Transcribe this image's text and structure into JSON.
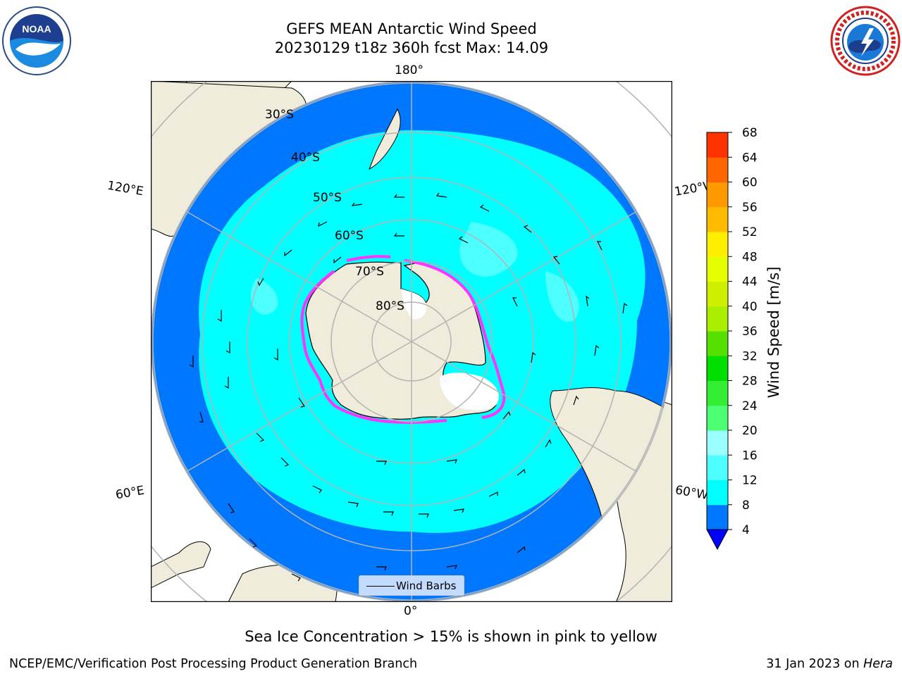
{
  "title": {
    "line1": "GEFS MEAN Antarctic Wind Speed",
    "line2": "20230129 t18z 360h fcst   Max: 14.09"
  },
  "logos": {
    "left": "noaa-logo",
    "right": "national-weather-service-logo"
  },
  "map": {
    "projection": "south-polar-stereographic",
    "lon_labels": {
      "top": "180°",
      "bottom": "0°",
      "upper_left": "120°E",
      "upper_right": "120°W",
      "lower_left": "60°E",
      "lower_right": "60°W"
    },
    "lat_labels": [
      "30°S",
      "40°S",
      "50°S",
      "60°S",
      "70°S",
      "80°S"
    ],
    "legend_label": "Wind Barbs",
    "colors": {
      "ocean_dark": "#0077ff",
      "ocean_light": "#00ffff",
      "land": "#efecdc",
      "ice": "#ffffff",
      "ice_edge": "#ff33ff",
      "grid": "#b3b3b3"
    }
  },
  "colorbar": {
    "label": "Wind Speed [m/s]",
    "ticks": [
      "4",
      "8",
      "12",
      "16",
      "20",
      "24",
      "28",
      "32",
      "36",
      "40",
      "44",
      "48",
      "52",
      "56",
      "60",
      "64",
      "68"
    ],
    "colors": [
      "#0077ff",
      "#00ffff",
      "#4dffff",
      "#99ffff",
      "#4dff73",
      "#33ee33",
      "#00e000",
      "#55e000",
      "#aaee00",
      "#cef000",
      "#e6ff00",
      "#ffee00",
      "#ffbb00",
      "#ff9900",
      "#ff6600",
      "#ff3300",
      "#ff0000"
    ],
    "under_color": "#0000ff"
  },
  "caption": "Sea Ice Concentration > 15% is shown in pink to yellow",
  "footer": {
    "left": "NCEP/EMC/Verification Post Processing Product Generation Branch",
    "right_text": "31 Jan 2023 on ",
    "right_machine": "Hera"
  }
}
